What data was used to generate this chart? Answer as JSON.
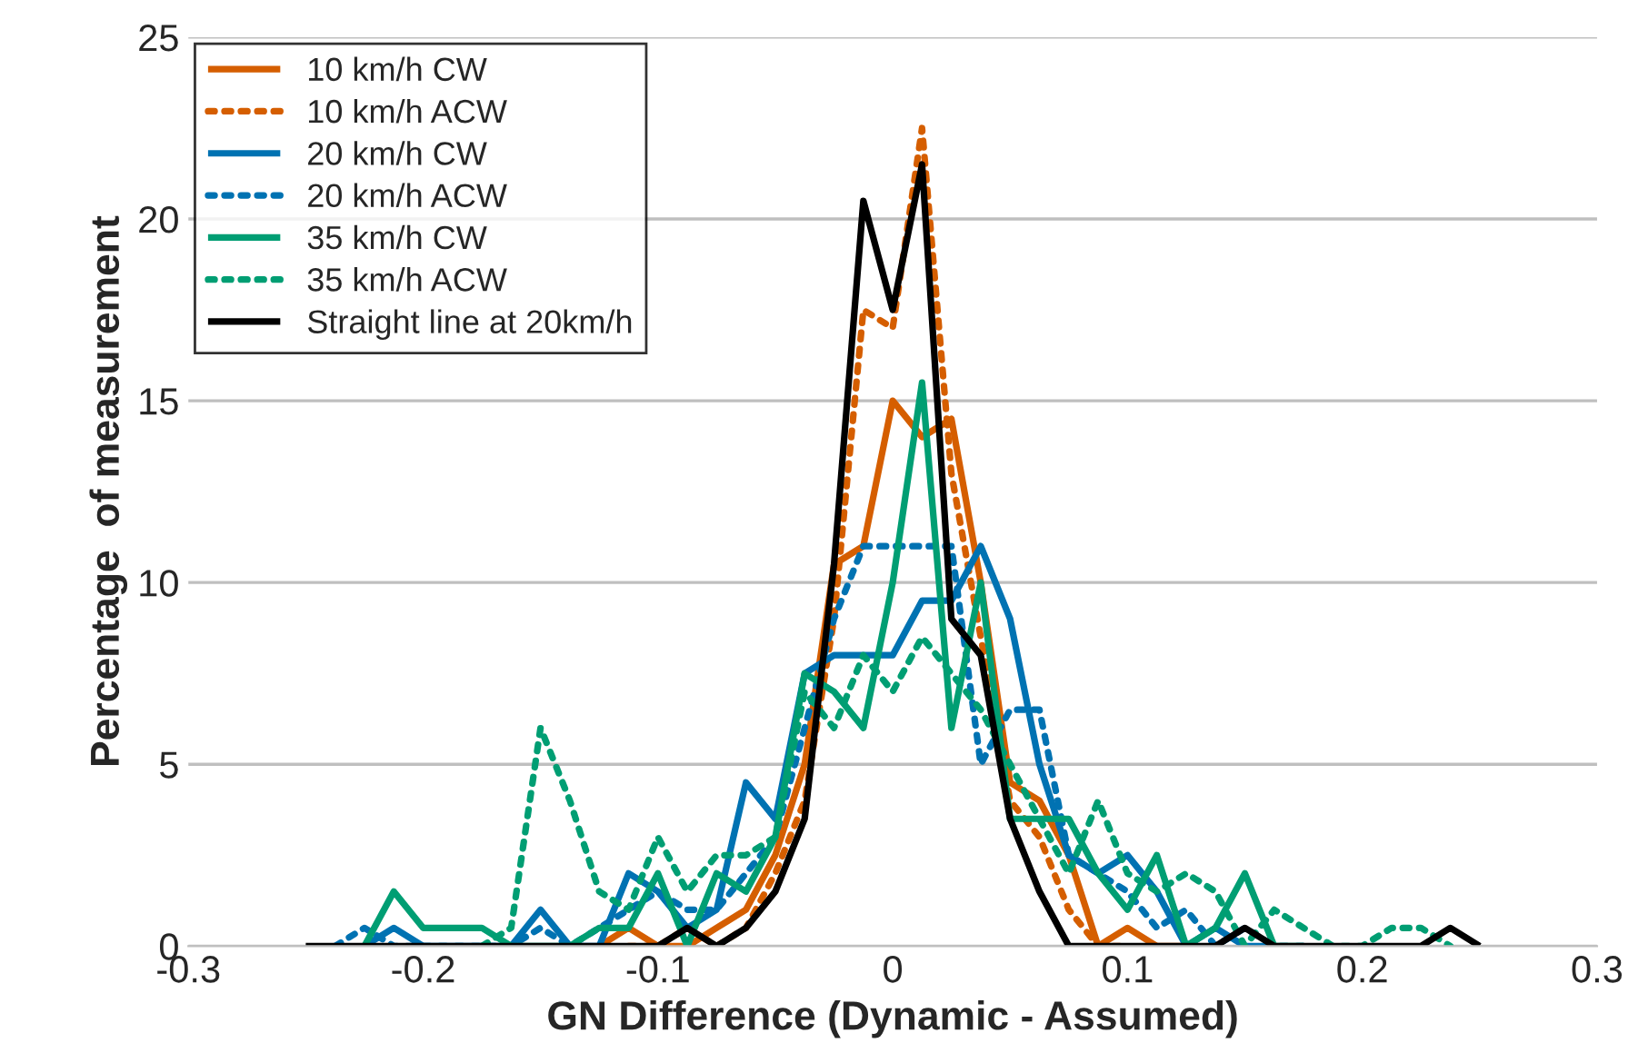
{
  "chart_data": {
    "type": "line",
    "xlabel": "GN Difference (Dynamic - Assumed)",
    "ylabel": "Percentage  of measurement",
    "xlim": [
      -0.3,
      0.3
    ],
    "xticks": [
      -0.3,
      -0.2,
      -0.1,
      0,
      0.1,
      0.2,
      0.3
    ],
    "ylim": [
      0,
      25
    ],
    "yticks": [
      0,
      5,
      10,
      15,
      20,
      25
    ],
    "grid": "y",
    "legend": "top left",
    "marker": "none",
    "series": [
      {
        "name": "10 km/h CW",
        "color": "#d55e00",
        "line_style": "solid",
        "x": [
          -0.125,
          -0.1125,
          -0.1,
          -0.0875,
          -0.075,
          -0.0625,
          -0.05,
          -0.0375,
          -0.025,
          -0.0125,
          0,
          0.0125,
          0.025,
          0.0375,
          0.05,
          0.0625,
          0.075,
          0.0875,
          0.1,
          0.1125,
          0.125
        ],
        "values": [
          0,
          0.5,
          0,
          0,
          0.5,
          1,
          2.5,
          5,
          10.5,
          11,
          15,
          14,
          14.5,
          10,
          4.5,
          4,
          2.5,
          0,
          0.5,
          0,
          0
        ]
      },
      {
        "name": "10 km/h ACW",
        "color": "#d55e00",
        "line_style": "dotted",
        "x": [
          -0.1125,
          -0.1,
          -0.0875,
          -0.075,
          -0.0625,
          -0.05,
          -0.0375,
          -0.025,
          -0.0125,
          0,
          0.0125,
          0.025,
          0.0375,
          0.05,
          0.0625,
          0.075,
          0.0875,
          0.1
        ],
        "values": [
          0,
          0,
          0.5,
          0,
          0.5,
          2,
          4,
          9,
          17.5,
          17,
          22.5,
          13,
          8.5,
          4,
          3,
          1,
          0,
          0
        ]
      },
      {
        "name": "20 km/h CW",
        "color": "#0072b2",
        "line_style": "solid",
        "x": [
          -0.225,
          -0.2125,
          -0.2,
          -0.1875,
          -0.175,
          -0.1625,
          -0.15,
          -0.1375,
          -0.125,
          -0.1125,
          -0.1,
          -0.0875,
          -0.075,
          -0.0625,
          -0.05,
          -0.0375,
          -0.025,
          -0.0125,
          0,
          0.0125,
          0.025,
          0.0375,
          0.05,
          0.0625,
          0.075,
          0.0875,
          0.1,
          0.1125,
          0.125,
          0.1375,
          0.15,
          0.1625
        ],
        "values": [
          0,
          0.5,
          0,
          0,
          0,
          0,
          1,
          0,
          0,
          2,
          1.5,
          0.5,
          1,
          4.5,
          3.5,
          7.5,
          8,
          8,
          8,
          9.5,
          9.5,
          11,
          9,
          5,
          2.5,
          2,
          2.5,
          1.5,
          0,
          0.5,
          0,
          0
        ]
      },
      {
        "name": "20 km/h ACW",
        "color": "#0072b2",
        "line_style": "dotted",
        "x": [
          -0.2375,
          -0.225,
          -0.2125,
          -0.2,
          -0.1875,
          -0.175,
          -0.1625,
          -0.15,
          -0.1375,
          -0.125,
          -0.1125,
          -0.1,
          -0.0875,
          -0.075,
          -0.0625,
          -0.05,
          -0.0375,
          -0.025,
          -0.0125,
          0,
          0.0125,
          0.025,
          0.0375,
          0.05,
          0.0625,
          0.075,
          0.0875,
          0.1,
          0.1125,
          0.125,
          0.1375,
          0.15,
          0.1625,
          0.175
        ],
        "values": [
          0,
          0.5,
          0,
          0,
          0,
          0,
          0,
          0.5,
          0,
          0.5,
          1,
          1.5,
          1,
          1,
          2,
          3,
          6,
          9,
          11,
          11,
          11,
          11,
          5,
          6.5,
          6.5,
          2.5,
          2,
          1.5,
          0.5,
          1,
          0,
          0.5,
          0,
          0
        ]
      },
      {
        "name": "35 km/h CW",
        "color": "#009e73",
        "line_style": "solid",
        "x": [
          -0.225,
          -0.2125,
          -0.2,
          -0.1875,
          -0.175,
          -0.1625,
          -0.15,
          -0.1375,
          -0.125,
          -0.1125,
          -0.1,
          -0.0875,
          -0.075,
          -0.0625,
          -0.05,
          -0.0375,
          -0.025,
          -0.0125,
          0,
          0.0125,
          0.025,
          0.0375,
          0.05,
          0.0625,
          0.075,
          0.0875,
          0.1,
          0.1125,
          0.125,
          0.1375,
          0.15,
          0.1625,
          0.175
        ],
        "values": [
          0,
          1.5,
          0.5,
          0.5,
          0.5,
          0,
          0,
          0,
          0.5,
          0.5,
          2,
          0,
          2,
          1.5,
          3,
          7.5,
          7,
          6,
          10,
          15.5,
          6,
          10,
          3.5,
          3.5,
          3.5,
          2,
          1,
          2.5,
          0,
          0.5,
          2,
          0,
          0
        ]
      },
      {
        "name": "35 km/h ACW",
        "color": "#009e73",
        "line_style": "dotted",
        "x": [
          -0.175,
          -0.1625,
          -0.15,
          -0.1375,
          -0.125,
          -0.1125,
          -0.1,
          -0.0875,
          -0.075,
          -0.0625,
          -0.05,
          -0.0375,
          -0.025,
          -0.0125,
          0,
          0.0125,
          0.025,
          0.0375,
          0.05,
          0.0625,
          0.075,
          0.0875,
          0.1,
          0.1125,
          0.125,
          0.1375,
          0.15,
          0.1625,
          0.175,
          0.1875,
          0.2,
          0.2125,
          0.225,
          0.2375
        ],
        "values": [
          0,
          0.5,
          6,
          4,
          1.5,
          1,
          3,
          1.5,
          2.5,
          2.5,
          3,
          7,
          6,
          8,
          7,
          8.5,
          7.5,
          6.5,
          5,
          3.5,
          2,
          4,
          2,
          1.5,
          2,
          1.5,
          0,
          1,
          0.5,
          0,
          0,
          0.5,
          0.5,
          0
        ]
      },
      {
        "name": "Straight line at 20km/h",
        "color": "#000000",
        "line_style": "solid",
        "x": [
          -0.25,
          -0.2375,
          -0.225,
          -0.2125,
          -0.2,
          -0.1875,
          -0.175,
          -0.1625,
          -0.15,
          -0.1375,
          -0.125,
          -0.1125,
          -0.1,
          -0.0875,
          -0.075,
          -0.0625,
          -0.05,
          -0.0375,
          -0.025,
          -0.0125,
          0,
          0.0125,
          0.025,
          0.0375,
          0.05,
          0.0625,
          0.075,
          0.0875,
          0.1,
          0.1125,
          0.125,
          0.1375,
          0.15,
          0.1625,
          0.175,
          0.1875,
          0.2,
          0.2125,
          0.225,
          0.2375,
          0.25
        ],
        "values": [
          0,
          0,
          0,
          0,
          0,
          0,
          0,
          0,
          0,
          0,
          0,
          0,
          0,
          0.5,
          0,
          0.5,
          1.5,
          3.5,
          10.5,
          20.5,
          17.5,
          21.5,
          9,
          8,
          3.5,
          1.5,
          0,
          0,
          0,
          0,
          0,
          0,
          0.5,
          0,
          0,
          0,
          0,
          0,
          0,
          0.5,
          0
        ]
      }
    ]
  }
}
